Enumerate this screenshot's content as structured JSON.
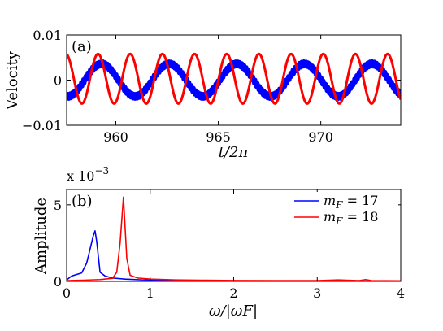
{
  "chart_data": [
    {
      "panel": "(a)",
      "type": "line",
      "xlabel": "t/2π",
      "ylabel": "Velocity",
      "xlim": [
        957.6,
        973.9
      ],
      "ylim": [
        -0.01,
        0.01
      ],
      "x_ticks": [
        960,
        965,
        970
      ],
      "x_tick_labels": [
        "960",
        "965",
        "970"
      ],
      "y_ticks": [
        -0.01,
        0,
        0.01
      ],
      "y_tick_labels": [
        "−0.01",
        "0",
        "0.01"
      ],
      "grid": false,
      "series": [
        {
          "color": "#0000ff",
          "amplitude": 0.0036,
          "period": 3.3,
          "peak_at": 969.2,
          "linewidth": 5,
          "ripple": 0.0006
        },
        {
          "color": "#ff0000",
          "amplitude": 0.0055,
          "period": 1.57,
          "peak_at": 960.7,
          "offset": 0.0003,
          "linewidth": 3
        }
      ]
    },
    {
      "panel": "(b)",
      "type": "line",
      "xlabel": "ω/|ωF|",
      "ylabel": "Amplitude",
      "scale_note": "x 10",
      "scale_exponent": "−3",
      "xlim": [
        0,
        4
      ],
      "ylim": [
        0,
        6
      ],
      "x_ticks": [
        0,
        1,
        2,
        3,
        4
      ],
      "x_tick_labels": [
        "0",
        "1",
        "2",
        "3",
        "4"
      ],
      "y_ticks": [
        0,
        5
      ],
      "y_tick_labels": [
        "0",
        "5"
      ],
      "grid": false,
      "legend_position": "top-right",
      "series": [
        {
          "name": "mF = 17",
          "color": "#0000ff",
          "x": [
            0.0,
            0.06,
            0.12,
            0.18,
            0.24,
            0.28,
            0.32,
            0.34,
            0.36,
            0.4,
            0.46,
            0.55,
            0.7,
            0.9,
            1.2,
            1.6,
            2.0,
            3.0,
            4.0
          ],
          "y": [
            0.1,
            0.35,
            0.45,
            0.55,
            1.2,
            2.1,
            3.0,
            3.3,
            2.6,
            0.6,
            0.35,
            0.22,
            0.15,
            0.1,
            0.08,
            0.05,
            0.04,
            0.03,
            0.02
          ]
        },
        {
          "name": "mF = 18",
          "color": "#ff0000",
          "x": [
            0.0,
            0.2,
            0.4,
            0.55,
            0.6,
            0.64,
            0.68,
            0.72,
            0.76,
            0.85,
            1.0,
            1.3,
            1.6,
            2.0,
            2.5,
            3.0,
            3.25,
            3.5,
            3.58,
            3.65,
            4.0
          ],
          "y": [
            0.05,
            0.08,
            0.12,
            0.2,
            0.6,
            2.5,
            5.5,
            1.5,
            0.4,
            0.22,
            0.15,
            0.1,
            0.08,
            0.06,
            0.05,
            0.05,
            0.1,
            0.05,
            0.12,
            0.05,
            0.04
          ]
        }
      ],
      "legend": [
        {
          "var": "m",
          "sub": "F",
          "rest": " = 17",
          "color": "#0000ff"
        },
        {
          "var": "m",
          "sub": "F",
          "rest": " = 18",
          "color": "#ff0000"
        }
      ]
    }
  ]
}
